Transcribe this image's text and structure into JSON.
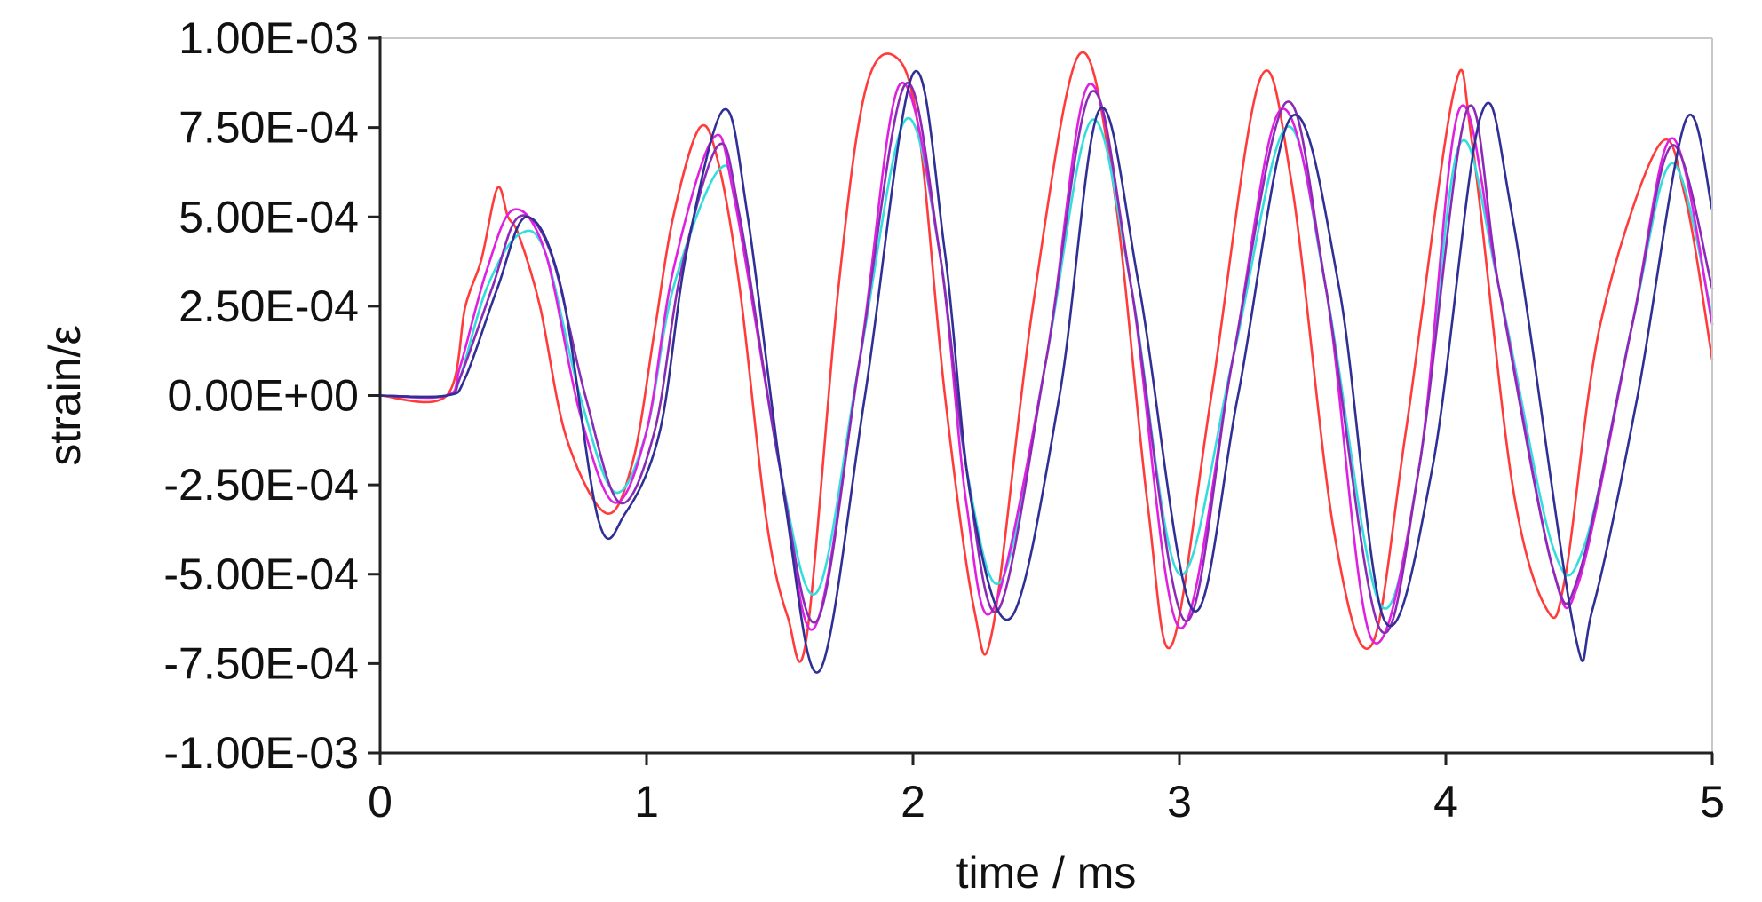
{
  "chart_data": {
    "type": "line",
    "title": "",
    "xlabel": "time / ms",
    "ylabel": "strain/ε",
    "xlim": [
      0,
      5
    ],
    "ylim": [
      -0.001,
      0.001
    ],
    "x_ticks": [
      "0",
      "1",
      "2",
      "3",
      "4",
      "5"
    ],
    "y_ticks": [
      "1.00E-03",
      "7.50E-04",
      "5.00E-04",
      "2.50E-04",
      "0.00E+00",
      "-2.50E-04",
      "-5.00E-04",
      "-7.50E-04",
      "-1.00E-03"
    ],
    "grid": false,
    "legend": "none",
    "series": [
      {
        "color": "#ff3b3b",
        "x": [
          0,
          0.25,
          0.32,
          0.38,
          0.44,
          0.48,
          0.52,
          0.6,
          0.7,
          0.85,
          0.95,
          1.03,
          1.1,
          1.2,
          1.27,
          1.35,
          1.45,
          1.53,
          1.6,
          1.72,
          1.82,
          1.93,
          2.02,
          2.12,
          2.23,
          2.3,
          2.45,
          2.62,
          2.75,
          2.88,
          2.97,
          3.12,
          3.3,
          3.42,
          3.58,
          3.72,
          3.85,
          4.03,
          4.1,
          4.25,
          4.38,
          4.45,
          4.58,
          4.8,
          4.9,
          5.0
        ],
        "y": [
          0,
          0,
          0.00025,
          0.00038,
          0.00058,
          0.0005,
          0.00045,
          0.00025,
          -0.00012,
          -0.00033,
          -0.00018,
          0.00018,
          0.0005,
          0.00075,
          0.00065,
          0.0003,
          -0.00035,
          -0.00062,
          -0.00068,
          0.0003,
          0.00085,
          0.00095,
          0.00075,
          0.0,
          -0.0006,
          -0.00065,
          0.00025,
          0.00095,
          0.0006,
          -0.0003,
          -0.0007,
          0.0,
          0.00088,
          0.0006,
          -0.00038,
          -0.0007,
          -0.0001,
          0.00085,
          0.0007,
          -0.00025,
          -0.0006,
          -0.0005,
          0.0002,
          0.0007,
          0.00055,
          0.0001
        ]
      },
      {
        "color": "#33dddd",
        "x": [
          0,
          0.25,
          0.3,
          0.4,
          0.52,
          0.62,
          0.75,
          0.88,
          1.0,
          1.1,
          1.27,
          1.35,
          1.5,
          1.64,
          1.8,
          1.97,
          2.1,
          2.2,
          2.33,
          2.5,
          2.67,
          2.82,
          3.0,
          3.2,
          3.4,
          3.55,
          3.75,
          3.9,
          4.05,
          4.2,
          4.4,
          4.52,
          4.7,
          4.85,
          5.0
        ],
        "y": [
          0,
          0,
          5e-05,
          0.0003,
          0.00045,
          0.0004,
          0.0,
          -0.00027,
          -0.0001,
          0.0003,
          0.00063,
          0.0005,
          -0.0002,
          -0.00055,
          0.0001,
          0.00077,
          0.0004,
          -0.0002,
          -0.00052,
          0.0001,
          0.00077,
          0.0003,
          -0.0005,
          0.0001,
          0.00075,
          0.0003,
          -0.00058,
          -0.0002,
          0.0007,
          0.0003,
          -0.00042,
          -0.00042,
          0.0002,
          0.00065,
          0.00022
        ]
      },
      {
        "color": "#e020e0",
        "x": [
          0,
          0.25,
          0.3,
          0.4,
          0.5,
          0.62,
          0.75,
          0.88,
          1.0,
          1.1,
          1.25,
          1.33,
          1.5,
          1.63,
          1.8,
          1.95,
          2.1,
          2.2,
          2.3,
          2.5,
          2.66,
          2.82,
          3.0,
          3.2,
          3.38,
          3.55,
          3.72,
          3.9,
          4.05,
          4.2,
          4.4,
          4.5,
          4.7,
          4.85,
          5.0
        ],
        "y": [
          0,
          0,
          8e-05,
          0.00035,
          0.00052,
          0.0004,
          -5e-05,
          -0.0003,
          -0.0001,
          0.00035,
          0.00072,
          0.00055,
          -0.0002,
          -0.00065,
          0.0001,
          0.00087,
          0.0004,
          -0.0003,
          -0.0006,
          0.0001,
          0.00087,
          0.0003,
          -0.00065,
          0.0001,
          0.0008,
          0.0003,
          -0.00068,
          -0.0002,
          0.0008,
          0.0003,
          -0.00048,
          -0.00052,
          0.0002,
          0.00072,
          0.0002
        ]
      },
      {
        "color": "#8a2ab5",
        "x": [
          0,
          0.25,
          0.3,
          0.42,
          0.52,
          0.64,
          0.77,
          0.9,
          1.03,
          1.13,
          1.27,
          1.35,
          1.5,
          1.64,
          1.8,
          1.97,
          2.1,
          2.2,
          2.32,
          2.5,
          2.67,
          2.82,
          3.02,
          3.2,
          3.4,
          3.55,
          3.75,
          3.9,
          4.08,
          4.2,
          4.4,
          4.5,
          4.7,
          4.85,
          5.0
        ],
        "y": [
          0,
          0,
          5e-05,
          0.0003,
          0.0005,
          0.0004,
          0.0,
          -0.0003,
          -0.0001,
          0.00035,
          0.0007,
          0.0005,
          -0.0002,
          -0.00063,
          0.0001,
          0.00087,
          0.0004,
          -0.0002,
          -0.0006,
          0.0001,
          0.00085,
          0.0003,
          -0.00063,
          0.0001,
          0.00082,
          0.0003,
          -0.00065,
          -0.0002,
          0.0008,
          0.0003,
          -0.00048,
          -0.0005,
          0.0002,
          0.0007,
          0.0003
        ]
      },
      {
        "color": "#2f2f95",
        "x": [
          0,
          0.25,
          0.32,
          0.44,
          0.55,
          0.68,
          0.82,
          0.92,
          1.05,
          1.15,
          1.29,
          1.38,
          1.52,
          1.65,
          1.82,
          2.0,
          2.12,
          2.22,
          2.37,
          2.55,
          2.7,
          2.85,
          3.05,
          3.22,
          3.42,
          3.6,
          3.77,
          3.95,
          4.13,
          4.25,
          4.48,
          4.55,
          4.72,
          4.9,
          5.0
        ],
        "y": [
          0,
          0,
          5e-05,
          0.0003,
          0.0005,
          0.0003,
          -0.00035,
          -0.00033,
          -0.0001,
          0.0004,
          0.0008,
          0.0005,
          -0.0003,
          -0.00077,
          0.0,
          0.0009,
          0.0004,
          -0.0003,
          -0.00062,
          0.0,
          0.0008,
          0.0003,
          -0.0006,
          0.0,
          0.00078,
          0.0003,
          -0.00063,
          -0.0002,
          0.00078,
          0.0005,
          -0.00065,
          -0.0006,
          0.0,
          0.00077,
          0.00052
        ]
      }
    ]
  }
}
